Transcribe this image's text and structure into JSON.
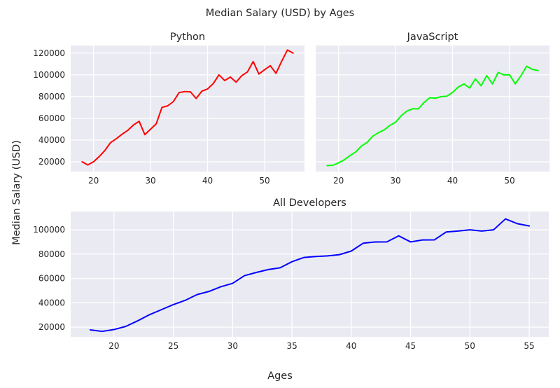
{
  "figure": {
    "suptitle": "Median Salary (USD) by Ages",
    "xlabel": "Ages",
    "ylabel": "Median Salary (USD)"
  },
  "chart_data": [
    {
      "type": "line",
      "title": "Python",
      "color": "#ff0000",
      "xlim": [
        16,
        57
      ],
      "ylim": [
        11000,
        127000
      ],
      "xticks": [
        20,
        30,
        40,
        50
      ],
      "yticks": [
        20000,
        40000,
        60000,
        80000,
        100000,
        120000
      ],
      "grid": true,
      "x": [
        18,
        19,
        20,
        21,
        22,
        23,
        24,
        25,
        26,
        27,
        28,
        29,
        30,
        31,
        32,
        33,
        34,
        35,
        36,
        37,
        38,
        39,
        40,
        41,
        42,
        43,
        44,
        45,
        46,
        47,
        48,
        49,
        50,
        51,
        52,
        53,
        54,
        55
      ],
      "y": [
        20046,
        17100,
        20000,
        24744,
        30500,
        37732,
        41247,
        45372,
        48876,
        53850,
        57287,
        45000,
        50000,
        55000,
        70000,
        71496,
        75370,
        83640,
        84666,
        84392,
        78254,
        85000,
        87038,
        91991,
        100000,
        94796,
        97962,
        93302,
        99240,
        102736,
        112285,
        100771,
        104708,
        108423,
        101407,
        112542,
        122870,
        120000
      ]
    },
    {
      "type": "line",
      "title": "JavaScript",
      "color": "#00ff00",
      "xlim": [
        16,
        57
      ],
      "ylim": [
        11000,
        127000
      ],
      "xticks": [
        20,
        30,
        40,
        50
      ],
      "grid": true,
      "x": [
        18,
        19,
        20,
        21,
        22,
        23,
        24,
        25,
        26,
        27,
        28,
        29,
        30,
        31,
        32,
        33,
        34,
        35,
        36,
        37,
        38,
        39,
        40,
        41,
        42,
        43,
        44,
        45,
        46,
        47,
        48,
        49,
        50,
        51,
        52,
        53,
        54,
        55
      ],
      "y": [
        16446,
        16791,
        18942,
        21780,
        25704,
        29000,
        34372,
        37810,
        43515,
        46823,
        49293,
        53437,
        56373,
        62375,
        66674,
        68745,
        68746,
        74583,
        79000,
        78508,
        79996,
        80403,
        83820,
        88833,
        91660,
        87892,
        96243,
        90000,
        99313,
        91660,
        102264,
        100000,
        100000,
        91660,
        99240,
        108000,
        105000,
        104000
      ]
    },
    {
      "type": "line",
      "title": "All Developers",
      "color": "#0000ff",
      "xlim": [
        16.35,
        56.65
      ],
      "ylim": [
        12000,
        115000
      ],
      "xticks": [
        20,
        25,
        30,
        35,
        40,
        45,
        50,
        55
      ],
      "yticks": [
        20000,
        40000,
        60000,
        80000,
        100000
      ],
      "grid": true,
      "x": [
        18,
        19,
        20,
        21,
        22,
        23,
        24,
        25,
        26,
        27,
        28,
        29,
        30,
        31,
        32,
        33,
        34,
        35,
        36,
        37,
        38,
        39,
        40,
        41,
        42,
        43,
        44,
        45,
        46,
        47,
        48,
        49,
        50,
        51,
        52,
        53,
        54,
        55
      ],
      "y": [
        17784,
        16500,
        18012,
        20628,
        25206,
        30252,
        34368,
        38496,
        42000,
        46752,
        49320,
        53200,
        56000,
        62316,
        64928,
        67317,
        68748,
        73752,
        77232,
        78000,
        78508,
        79536,
        82488,
        88935,
        90000,
        90056,
        95000,
        90000,
        91633,
        91660,
        98150,
        98964,
        100000,
        98988,
        100000,
        108923,
        105000,
        103117
      ]
    }
  ]
}
